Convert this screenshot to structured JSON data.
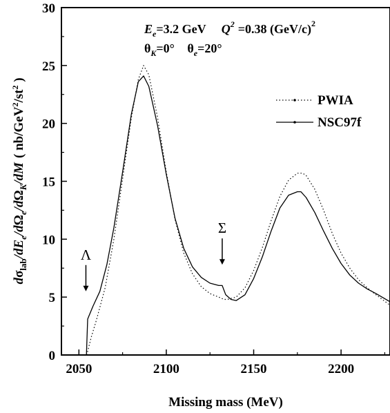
{
  "chart_data": {
    "type": "line",
    "xlabel": "Missing mass (MeV)",
    "ylabel": {
      "d1": "d",
      "sigma": "σ",
      "sub_lab": "lab",
      "s1": "/dE",
      "sub_e1": "e",
      "s2": "/d",
      "omega1": "Ω",
      "sub_e2": "e",
      "s3": "/d",
      "omega2": "Ω",
      "sub_K": "K",
      "s4": "/dM",
      "unit": "( nb/GeV",
      "sup2": "2",
      "unit2": "/st",
      "sup3": "2",
      "unit3": " )"
    },
    "xlim": [
      2040,
      2228
    ],
    "ylim": [
      0,
      30
    ],
    "xticks": [
      "2050",
      "2100",
      "2150",
      "2200"
    ],
    "yticks": [
      "0",
      "5",
      "10",
      "15",
      "20",
      "25",
      "30"
    ],
    "annotation": {
      "Ee_sym": "E",
      "Ee_sub": "e",
      "Ee_val": "=3.2 GeV",
      "Q_sym": "Q",
      "Q_sup": "2",
      "Q_val": "=0.38 (GeV/c)",
      "Q_sup2": "2",
      "thK_sym": "θ",
      "thK_sub": "K",
      "thK_val": "=0°",
      "the_sym": "θ",
      "the_sub": "e",
      "the_val": "=20°"
    },
    "markers": [
      {
        "label": "Λ",
        "x": 2054,
        "y": 5.5
      },
      {
        "label": "Σ",
        "x": 2132,
        "y": 7.8
      }
    ],
    "legend_position": "right",
    "series": [
      {
        "name": "PWIA",
        "style": "dotted",
        "x": [
          2054.5,
          2057,
          2060,
          2065,
          2070,
          2075,
          2080,
          2084,
          2087,
          2090,
          2095,
          2100,
          2105,
          2110,
          2115,
          2120,
          2125,
          2130,
          2133,
          2135,
          2140,
          2145,
          2150,
          2155,
          2160,
          2165,
          2170,
          2175,
          2178,
          2180,
          2185,
          2190,
          2195,
          2200,
          2205,
          2210,
          2215,
          2220,
          2228
        ],
        "y": [
          0,
          1.5,
          3.0,
          5.8,
          10.0,
          15.2,
          20.5,
          23.8,
          25.0,
          24.2,
          20.5,
          15.8,
          11.7,
          8.8,
          7.0,
          5.9,
          5.3,
          5.0,
          4.8,
          4.8,
          5.0,
          5.8,
          7.3,
          9.3,
          11.6,
          13.7,
          15.1,
          15.7,
          15.7,
          15.5,
          14.3,
          12.5,
          10.5,
          8.8,
          7.5,
          6.5,
          5.8,
          5.2,
          4.3
        ]
      },
      {
        "name": "NSC97f",
        "style": "solid",
        "x": [
          2054.3,
          2055,
          2058,
          2062,
          2066,
          2070,
          2075,
          2080,
          2084,
          2087,
          2090,
          2095,
          2100,
          2105,
          2110,
          2115,
          2120,
          2125,
          2130,
          2132,
          2134,
          2137,
          2140,
          2145,
          2150,
          2155,
          2160,
          2165,
          2170,
          2175,
          2177,
          2180,
          2185,
          2190,
          2195,
          2200,
          2205,
          2210,
          2215,
          2220,
          2228
        ],
        "y": [
          0,
          3.1,
          4.2,
          5.5,
          7.8,
          11.0,
          15.8,
          20.8,
          23.6,
          24.1,
          23.2,
          19.8,
          15.6,
          11.8,
          9.2,
          7.6,
          6.7,
          6.2,
          6.0,
          6.0,
          5.2,
          4.8,
          4.7,
          5.2,
          6.6,
          8.5,
          10.7,
          12.7,
          13.8,
          14.1,
          14.1,
          13.6,
          12.3,
          10.7,
          9.2,
          7.9,
          6.9,
          6.2,
          5.7,
          5.3,
          4.6
        ]
      }
    ]
  }
}
